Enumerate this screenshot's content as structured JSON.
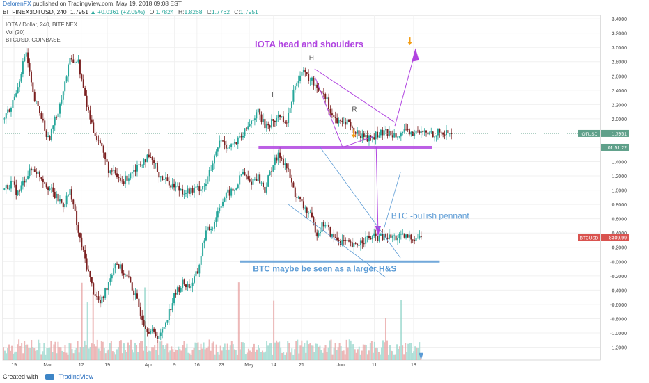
{
  "header": {
    "author": "DelorenFX",
    "published_text": "published on TradingView.com, May 19, 2018 09:08 EST"
  },
  "symbol_line": {
    "symbol": "BITFINEX:IOTUSD, 240",
    "last": "1.7951",
    "change": "▲ +0.0361 (+2.05%)",
    "o_label": "O:",
    "o": "1.7824",
    "h_label": "H:",
    "h": "1.8268",
    "l_label": "L:",
    "l": "1.7762",
    "c_label": "C:",
    "c": "1.7951"
  },
  "legend": {
    "title": "IOTA / Dollar, 240, BITFINEX",
    "vol": "Vol (20)",
    "overlay": "BTCUSD, COINBASE"
  },
  "footer": {
    "created_with": "Created with",
    "brand": "TradingView"
  },
  "colors": {
    "bull": "#26a69a",
    "bear": "#7a1f1f",
    "purple": "#b044e0",
    "blue": "#5b9bd5",
    "orange": "#f39c12",
    "btc_badge": "#d9534f",
    "iot_badge": "#5fa08a"
  },
  "chart_data": {
    "type": "line",
    "title": "IOTA / Dollar, 240, BITFINEX",
    "y_axis_ticks": [
      "3.4000",
      "3.2000",
      "3.0000",
      "2.8000",
      "2.6000",
      "2.4000",
      "2.2000",
      "2.0000",
      "1.8000",
      "1.6000",
      "1.4000",
      "1.2000",
      "1.0000",
      "0.8000",
      "0.6000",
      "0.4000",
      "0.2000",
      "-0.0000",
      "-0.2000",
      "-0.4000",
      "-0.6000",
      "-0.8000",
      "-1.0000",
      "-1.2000"
    ],
    "ylim": [
      -1.38,
      3.45
    ],
    "x_axis_ticks": [
      "19",
      "Mar",
      "12",
      "19",
      "Apr",
      "9",
      "16",
      "23",
      "May",
      "14",
      "21",
      "Jun",
      "11",
      "18"
    ],
    "price_badges": [
      {
        "label": "IOTUSD",
        "value": "1.7951",
        "value_num": 1.7951
      },
      {
        "label": "",
        "value": "01:51:22",
        "value_num": 1.6
      },
      {
        "label": "BTCUSD",
        "value": "8309.99",
        "value_num": 0.34
      }
    ],
    "series": [
      {
        "name": "BITFINEX:IOTUSD",
        "x": [
          0,
          4,
          8,
          12,
          16,
          20,
          24,
          28,
          32,
          36,
          40,
          44,
          48,
          52,
          56,
          60,
          64,
          68,
          72,
          76,
          80,
          84,
          88,
          92,
          96,
          100,
          104,
          108,
          112,
          116,
          120,
          124,
          128,
          132,
          136,
          140,
          144,
          148,
          152,
          156,
          160,
          164,
          168,
          172,
          176,
          180,
          184,
          188,
          192,
          196,
          200,
          204,
          208,
          212,
          216,
          220,
          224,
          226,
          228,
          232,
          236,
          240
        ],
        "values": [
          2.0,
          2.15,
          2.5,
          2.95,
          2.3,
          2.05,
          1.7,
          2.0,
          2.4,
          2.85,
          2.8,
          2.25,
          1.85,
          1.65,
          1.3,
          1.2,
          1.1,
          1.25,
          1.35,
          1.45,
          1.4,
          1.2,
          1.12,
          1.05,
          1.0,
          0.98,
          1.02,
          1.08,
          1.35,
          1.7,
          1.62,
          1.65,
          1.75,
          1.95,
          2.1,
          1.9,
          1.95,
          2.05,
          1.95,
          2.5,
          2.65,
          2.55,
          2.45,
          2.35,
          2.05,
          1.92,
          1.98,
          1.8,
          1.78,
          1.72,
          1.78,
          1.8,
          1.8,
          1.8,
          1.8,
          1.8,
          1.8,
          1.8,
          1.8,
          1.8,
          1.8,
          1.8
        ]
      },
      {
        "name": "COINBASE:BTCUSD",
        "x": [
          0,
          4,
          8,
          12,
          16,
          20,
          24,
          28,
          32,
          36,
          40,
          44,
          48,
          52,
          56,
          60,
          64,
          68,
          72,
          76,
          80,
          84,
          88,
          92,
          96,
          100,
          104,
          108,
          112,
          116,
          120,
          124,
          128,
          132,
          136,
          140,
          144,
          148,
          152,
          156,
          160,
          164,
          168,
          172,
          176,
          180,
          184,
          188,
          192,
          196,
          200,
          204,
          208,
          212,
          216,
          220,
          224
        ],
        "values": [
          1.0,
          1.1,
          0.95,
          1.2,
          1.3,
          1.2,
          1.05,
          0.9,
          0.8,
          1.0,
          0.4,
          0.0,
          -0.4,
          -0.6,
          -0.3,
          0.0,
          -0.15,
          -0.3,
          -0.6,
          -0.9,
          -1.0,
          -1.05,
          -0.75,
          -0.45,
          -0.3,
          -0.35,
          -0.15,
          0.4,
          0.5,
          0.8,
          0.95,
          1.0,
          1.25,
          1.1,
          1.2,
          1.0,
          1.35,
          1.5,
          1.3,
          0.95,
          0.8,
          0.65,
          0.4,
          0.55,
          0.35,
          0.3,
          0.25,
          0.2,
          0.3,
          0.33,
          0.34,
          0.34,
          0.34,
          0.34,
          0.34,
          0.34,
          0.34
        ]
      }
    ],
    "annotations": {
      "title_text": "IOTA head and shoulders",
      "h": "H",
      "l": "L",
      "r": "R",
      "btc_pennant": "BTC -bullish pennant",
      "btc_hs": "BTC maybe be seen as a larger H&S"
    },
    "grid": true
  }
}
